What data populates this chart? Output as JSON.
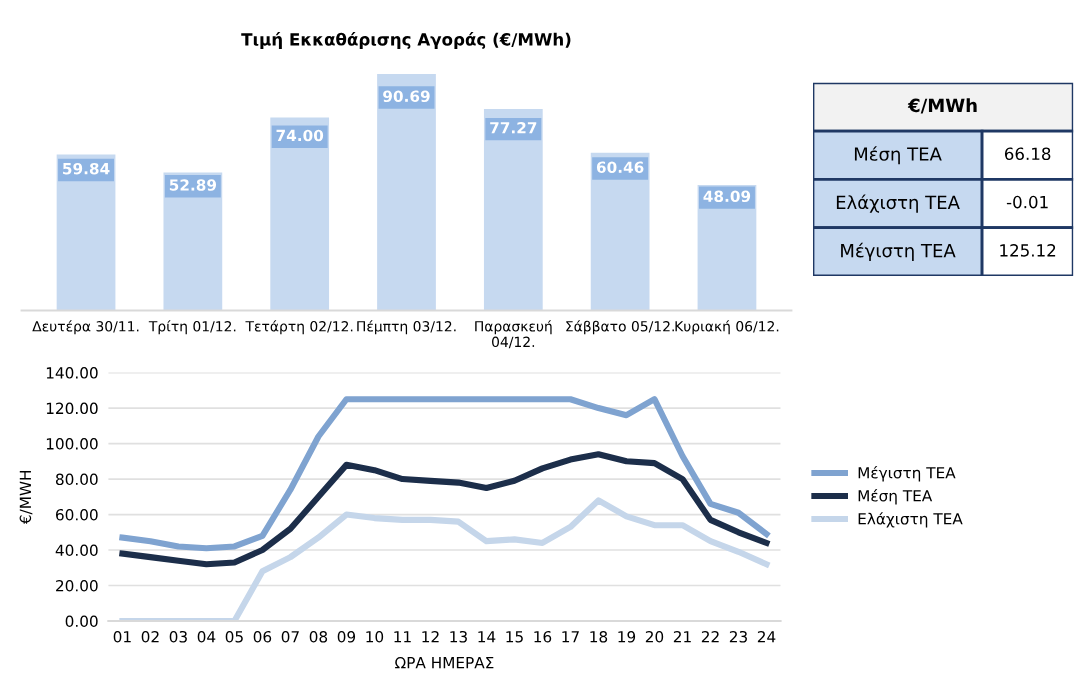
{
  "chart_data": [
    {
      "type": "bar",
      "title": "Τιμή Εκκαθάρισης Αγοράς (€/MWh)",
      "categories": [
        "Δευτέρα 30/11.",
        "Τρίτη 01/12.",
        "Τετάρτη 02/12.",
        "Πέμπτη 03/12.",
        "Παρασκευή\n04/12.",
        "Σάββατο 05/12.",
        "Κυριακή 06/12."
      ],
      "values": [
        59.84,
        52.89,
        74.0,
        90.69,
        77.27,
        60.46,
        48.09
      ],
      "value_labels": [
        "59.84",
        "52.89",
        "74.00",
        "90.69",
        "77.27",
        "60.46",
        "48.09"
      ],
      "color": "#c6d9f0",
      "tick_labels": "x",
      "grid": false
    },
    {
      "type": "other",
      "title": "€/MWh",
      "annotations": [
        "Μέση ΤΕΑ",
        "66.18",
        "Ελάχιστη ΤΕΑ",
        "-0.01",
        "Μέγιστη ΤΕΑ",
        "125.12"
      ]
    },
    {
      "type": "line",
      "categories": [
        "01",
        "02",
        "03",
        "04",
        "05",
        "06",
        "07",
        "08",
        "09",
        "10",
        "11",
        "12",
        "13",
        "14",
        "15",
        "16",
        "17",
        "18",
        "19",
        "20",
        "21",
        "22",
        "23",
        "24"
      ],
      "ylabel": "€/MWH",
      "xlabel": "ΩΡΑ ΗΜΕΡΑΣ",
      "ylim": [
        0,
        140
      ],
      "yticks": [
        {
          "value": 0,
          "label": "0.00"
        },
        {
          "value": 20,
          "label": "20.00"
        },
        {
          "value": 40,
          "label": "40.00"
        },
        {
          "value": 60,
          "label": "60.00"
        },
        {
          "value": 80,
          "label": "80.00"
        },
        {
          "value": 100,
          "label": "100.00"
        },
        {
          "value": 120,
          "label": "120.00"
        },
        {
          "value": 140,
          "label": "140.00"
        }
      ],
      "grid": "y",
      "legend": "right",
      "series": [
        {
          "name": "Μέγιστη ΤΕΑ",
          "color": "#7fa3d0",
          "values": [
            47,
            45,
            42,
            41,
            42,
            48,
            74,
            104,
            125,
            125,
            125,
            125,
            125,
            125,
            125,
            125,
            125,
            120,
            116,
            125,
            93,
            66,
            61,
            49
          ]
        },
        {
          "name": "Μέση ΤΕΑ",
          "color": "#1c2e4a",
          "values": [
            38,
            36,
            34,
            32,
            33,
            40,
            52,
            70,
            88,
            85,
            80,
            79,
            78,
            75,
            79,
            86,
            91,
            94,
            90,
            89,
            80,
            57,
            50,
            44
          ]
        },
        {
          "name": "Ελάχιστη ΤΕΑ",
          "color": "#c5d6ea",
          "values": [
            0,
            0,
            0,
            0,
            0,
            28,
            36,
            47,
            60,
            58,
            57,
            57,
            56,
            45,
            46,
            44,
            53,
            68,
            59,
            54,
            54,
            45,
            39,
            32
          ]
        }
      ]
    }
  ]
}
